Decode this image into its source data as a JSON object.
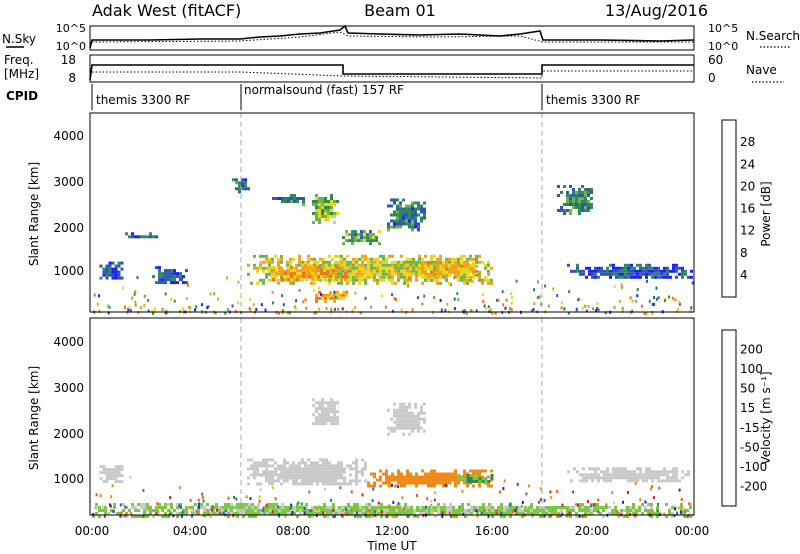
{
  "header": {
    "station": "Adak West (fitACF)",
    "beam": "Beam 01",
    "date": "13/Aug/2016"
  },
  "status_panels": {
    "nsky": {
      "label": "N.Sky",
      "ticks": [
        "10^5",
        "10^0"
      ]
    },
    "nsearch": {
      "label": "N.Search",
      "ticks": [
        "10^5",
        "10^0"
      ]
    },
    "freq": {
      "label_line1": "Freq.",
      "label_line2": "[MHz]",
      "ticks": [
        "18",
        "8"
      ]
    },
    "nave": {
      "label": "Nave",
      "ticks": [
        "60",
        "0"
      ]
    },
    "cpid": {
      "label": "CPID",
      "segments": [
        {
          "name": "themis 3300 RF",
          "start_hour": 0,
          "end_hour": 6
        },
        {
          "name": "normalsound (fast) 157 RF",
          "start_hour": 6,
          "end_hour": 18
        },
        {
          "name": "themis 3300 RF",
          "start_hour": 18,
          "end_hour": 24
        }
      ]
    }
  },
  "x_axis": {
    "label": "Time UT",
    "ticks": [
      "00:00",
      "04:00",
      "08:00",
      "12:00",
      "16:00",
      "20:00",
      "00:00"
    ],
    "range_hours": [
      0,
      24
    ]
  },
  "panels": {
    "power": {
      "ylabel": "Slant Range [km]",
      "yticks": [
        "1000",
        "2000",
        "3000",
        "4000"
      ],
      "colorbar_label": "Power [dB]",
      "colorbar_ticks": [
        "4",
        "8",
        "12",
        "16",
        "20",
        "24",
        "28"
      ],
      "colorbar_colors": [
        "#1f1fff",
        "#2d56b5",
        "#2e8b57",
        "#6fb34a",
        "#e8d81c",
        "#f0a21a",
        "#f07318",
        "#ff2a00"
      ]
    },
    "velocity": {
      "ylabel": "Slant Range [km]",
      "yticks": [
        "1000",
        "2000",
        "3000",
        "4000"
      ],
      "colorbar_label": "Velocity [m s⁻¹]",
      "colorbar_ticks": [
        "200",
        "100",
        "50",
        "15",
        "-15",
        "-50",
        "-100",
        "-200"
      ],
      "colorbar_colors": [
        "#1b2fa8",
        "#2a66b0",
        "#2e8b57",
        "#7ac943",
        "#c9c9c9",
        "#f2b01e",
        "#f08a18",
        "#ef5b12",
        "#e01b1b"
      ]
    }
  },
  "chart_data": {
    "type": "heatmap",
    "title": "Adak West (fitACF)",
    "subtitle": "Beam 01",
    "xlabel": "Time UT",
    "ylabel": "Slant Range [km]",
    "xlim": [
      0,
      24
    ],
    "ylim": [
      180,
      4600
    ],
    "x_unit": "hours UT",
    "grid": false,
    "series": [
      {
        "name": "Power [dB]",
        "regions": [
          {
            "t": [
              0.3,
              1.2
            ],
            "r": [
              900,
              1300
            ],
            "v": 6
          },
          {
            "t": [
              2.4,
              3.8
            ],
            "r": [
              850,
              1200
            ],
            "v": 6
          },
          {
            "t": [
              1.2,
              2.6
            ],
            "r": [
              1850,
              1950
            ],
            "v": 6
          },
          {
            "t": [
              5.6,
              6.2
            ],
            "r": [
              2850,
              3150
            ],
            "v": 8
          },
          {
            "t": [
              6.2,
              16.0
            ],
            "r": [
              850,
              1450
            ],
            "v": 18
          },
          {
            "t": [
              7.2,
              10.2
            ],
            "r": [
              900,
              1200
            ],
            "v": 22
          },
          {
            "t": [
              12.8,
              15.6
            ],
            "r": [
              1000,
              1300
            ],
            "v": 20
          },
          {
            "t": [
              8.8,
              9.8
            ],
            "r": [
              2200,
              2800
            ],
            "v": 14
          },
          {
            "t": [
              10.0,
              11.5
            ],
            "r": [
              1700,
              2000
            ],
            "v": 12
          },
          {
            "t": [
              11.8,
              13.3
            ],
            "r": [
              2000,
              2700
            ],
            "v": 8
          },
          {
            "t": [
              7.2,
              8.5
            ],
            "r": [
              2600,
              2800
            ],
            "v": 8
          },
          {
            "t": [
              8.8,
              10.2
            ],
            "r": [
              450,
              650
            ],
            "v": 22
          },
          {
            "t": [
              18.6,
              20.0
            ],
            "r": [
              2400,
              3000
            ],
            "v": 10
          },
          {
            "t": [
              19.0,
              24.0
            ],
            "r": [
              950,
              1250
            ],
            "v": 6
          }
        ]
      },
      {
        "name": "Velocity [m s-1]",
        "regions": [
          {
            "t": [
              0.3,
              1.2
            ],
            "r": [
              900,
              1300
            ],
            "v": 0
          },
          {
            "t": [
              6.2,
              11.0
            ],
            "r": [
              850,
              1450
            ],
            "v": 0
          },
          {
            "t": [
              11.0,
              16.0
            ],
            "r": [
              850,
              1200
            ],
            "v": -50
          },
          {
            "t": [
              14.5,
              16.0
            ],
            "r": [
              900,
              1100
            ],
            "v": 30
          },
          {
            "t": [
              8.8,
              9.8
            ],
            "r": [
              2200,
              2800
            ],
            "v": 0
          },
          {
            "t": [
              11.8,
              13.3
            ],
            "r": [
              2000,
              2700
            ],
            "v": 0
          },
          {
            "t": [
              19.0,
              24.0
            ],
            "r": [
              950,
              1250
            ],
            "v": 0
          },
          {
            "t": [
              0.0,
              24.0
            ],
            "r": [
              180,
              450
            ],
            "v": 20
          }
        ]
      }
    ]
  }
}
